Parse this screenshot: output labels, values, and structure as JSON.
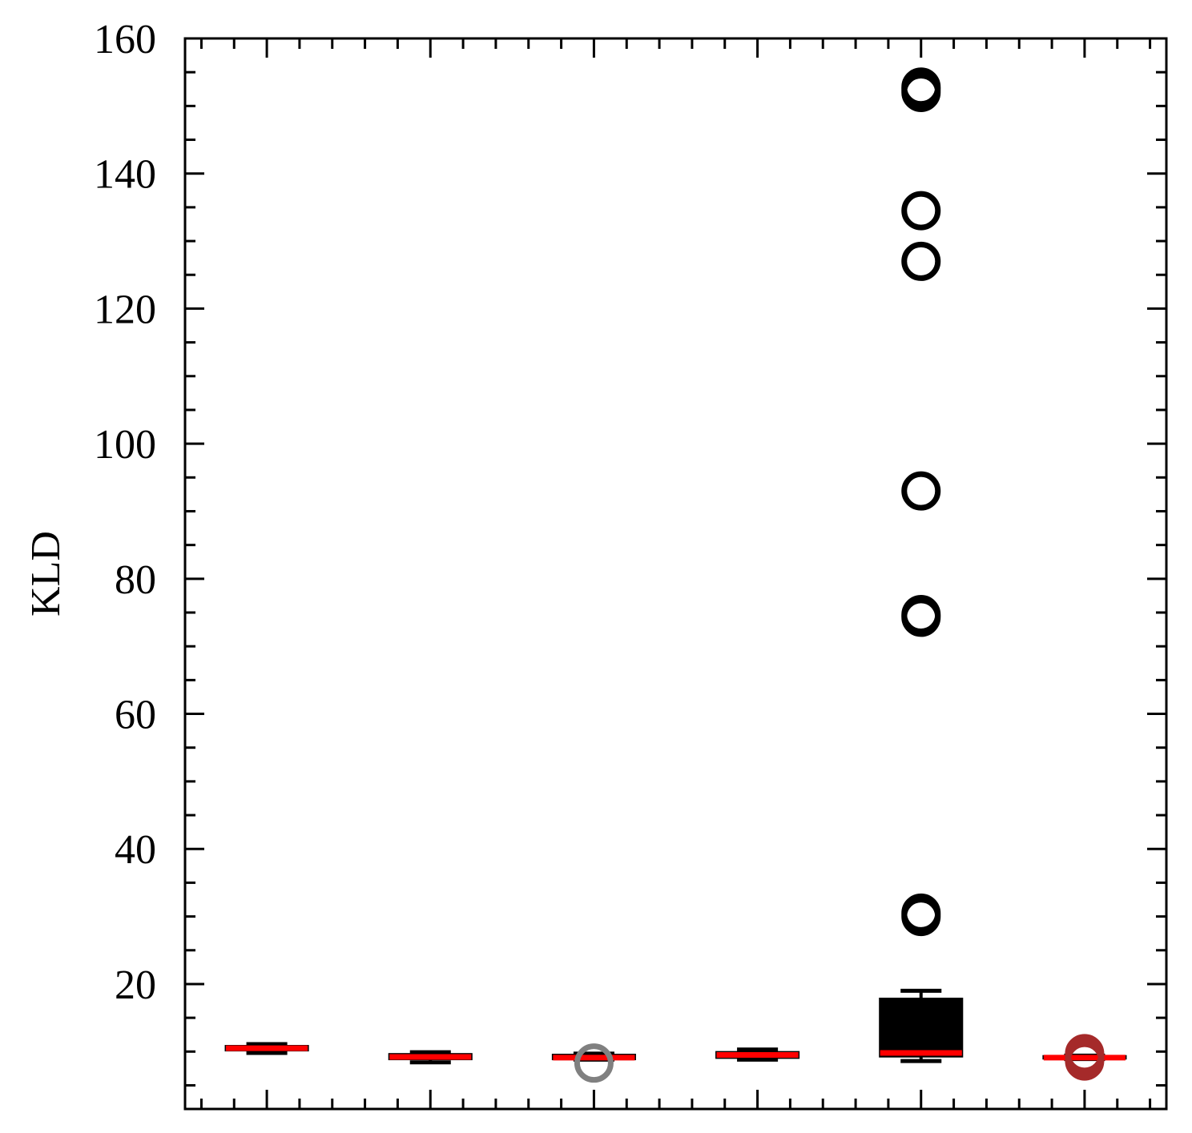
{
  "chart_data": {
    "type": "boxplot",
    "title": "",
    "xlabel": "",
    "ylabel": "KLD",
    "ylim": [
      1.5,
      160
    ],
    "yticks": [
      20,
      40,
      60,
      80,
      100,
      120,
      140,
      160
    ],
    "grid": false,
    "legend": "none",
    "median_color": "#ff0000",
    "boxes": [
      {
        "q1": 10.2,
        "median": 10.5,
        "q3": 10.8,
        "whisker_low": 9.8,
        "whisker_high": 11.1,
        "color": "#000000",
        "outliers": [],
        "outlier_color": "#000000"
      },
      {
        "q1": 8.9,
        "median": 9.2,
        "q3": 9.6,
        "whisker_low": 8.4,
        "whisker_high": 9.9,
        "color": "#000000",
        "outliers": [],
        "outlier_color": "#000000"
      },
      {
        "q1": 8.9,
        "median": 9.1,
        "q3": 9.5,
        "whisker_low": 8.8,
        "whisker_high": 9.7,
        "color": "#000000",
        "outliers": [
          8.3
        ],
        "outlier_color": "#808080"
      },
      {
        "q1": 9.1,
        "median": 9.5,
        "q3": 9.9,
        "whisker_low": 8.8,
        "whisker_high": 10.3,
        "color": "#000000",
        "outliers": [],
        "outlier_color": "#000000"
      },
      {
        "q1": 9.3,
        "median": 9.8,
        "q3": 17.8,
        "whisker_low": 8.6,
        "whisker_high": 19.0,
        "color": "#000000",
        "outliers": [
          30.0,
          30.5,
          74.3,
          74.7,
          93.0,
          127.0,
          134.5,
          152.0,
          152.4,
          152.8
        ],
        "outlier_color": "#000000"
      },
      {
        "q1": 9.0,
        "median": 9.1,
        "q3": 9.3,
        "whisker_low": 8.9,
        "whisker_high": 9.4,
        "color": "#000000",
        "outliers": [
          8.6,
          9.2,
          9.7
        ],
        "outlier_color": "#a52a2a"
      }
    ]
  }
}
